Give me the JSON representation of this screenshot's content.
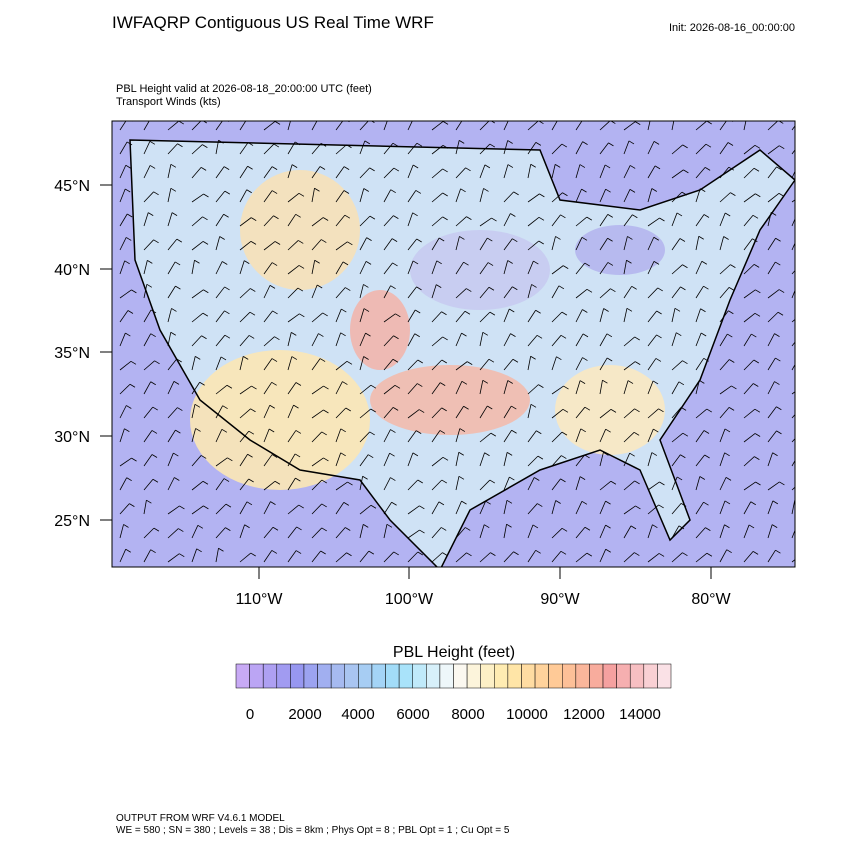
{
  "header": {
    "title": "IWFAQRP Contiguous US Real Time WRF",
    "init": "Init: 2026-08-16_00:00:00"
  },
  "subtitle": {
    "line1": "PBL Height valid at 2026-08-18_20:00:00 UTC   (feet)",
    "line2": "Transport Winds   (kts)"
  },
  "map": {
    "lat_labels": [
      "45°N",
      "40°N",
      "35°N",
      "30°N",
      "25°N"
    ],
    "lon_labels": [
      "110°W",
      "100°W",
      "90°W",
      "80°W"
    ]
  },
  "colorbar": {
    "title": "PBL Height  (feet)",
    "labels": [
      "0",
      "2000",
      "4000",
      "6000",
      "8000",
      "10000",
      "12000",
      "14000"
    ]
  },
  "footer": {
    "line1": "OUTPUT FROM WRF V4.6.1 MODEL",
    "line2": "WE = 580 ; SN = 380 ; Levels = 38 ; Dis = 8km ; Phys Opt = 8 ; PBL Opt = 1 ; Cu Opt = 5"
  }
}
